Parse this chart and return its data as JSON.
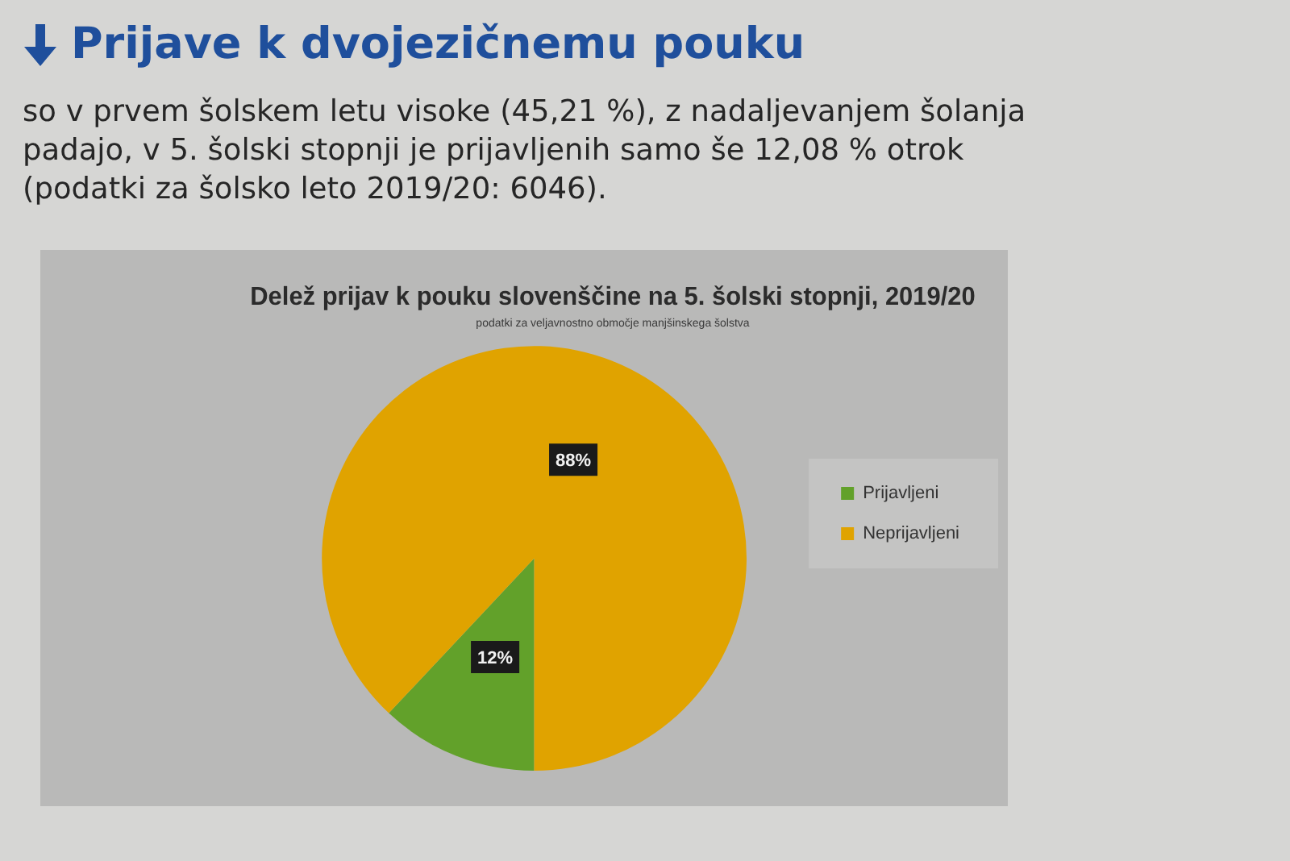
{
  "chart_data": {
    "type": "pie",
    "title": "Delež prijav k pouku slovenščine na 5. šolski stopnji, 2019/20",
    "subtitle": "podatki za veljavnostno območje manjšinskega šolstva",
    "annotations": [
      "Prijave k dvojezičnemu pouku",
      "so v prvem šolskem letu visoke (45,21 %), z nadaljevanjem šolanja padajo, v 5. šolski stopnji je prijavljenih samo še 12,08 % otrok (podatki za šolsko leto 2019/20: 6046)."
    ],
    "categories": [
      "Prijavljeni",
      "Neprijavljeni"
    ],
    "values": [
      12,
      88
    ],
    "value_labels": [
      "12%",
      "88%"
    ],
    "colors": [
      "#62a12a",
      "#e0a300"
    ],
    "legend": "right"
  }
}
